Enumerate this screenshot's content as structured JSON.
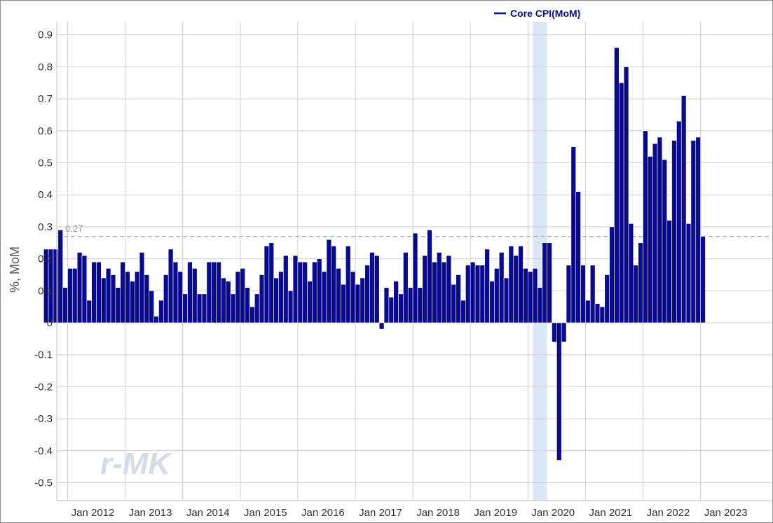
{
  "chart_data": {
    "type": "bar",
    "series": [
      {
        "name": "Core CPI(MoM)",
        "color": "#0a0a8c",
        "start": "2011-08",
        "values": [
          0.23,
          0.23,
          0.23,
          0.29,
          0.11,
          0.17,
          0.17,
          0.22,
          0.21,
          0.07,
          0.19,
          0.19,
          0.14,
          0.17,
          0.15,
          0.11,
          0.19,
          0.16,
          0.13,
          0.16,
          0.22,
          0.15,
          0.1,
          0.02,
          0.07,
          0.15,
          0.23,
          0.19,
          0.16,
          0.09,
          0.19,
          0.17,
          0.09,
          0.09,
          0.19,
          0.19,
          0.19,
          0.14,
          0.13,
          0.09,
          0.16,
          0.17,
          0.11,
          0.05,
          0.09,
          0.15,
          0.24,
          0.25,
          0.14,
          0.16,
          0.21,
          0.1,
          0.21,
          0.19,
          0.19,
          0.13,
          0.19,
          0.2,
          0.16,
          0.26,
          0.24,
          0.17,
          0.12,
          0.24,
          0.16,
          0.12,
          0.14,
          0.18,
          0.22,
          0.21,
          -0.02,
          0.11,
          0.08,
          0.13,
          0.09,
          0.22,
          0.11,
          0.28,
          0.11,
          0.21,
          0.29,
          0.19,
          0.22,
          0.19,
          0.21,
          0.12,
          0.15,
          0.07,
          0.18,
          0.19,
          0.18,
          0.18,
          0.23,
          0.13,
          0.17,
          0.22,
          0.14,
          0.24,
          0.21,
          0.24,
          0.17,
          0.16,
          0.17,
          0.11,
          0.25,
          0.25,
          -0.06,
          -0.43,
          -0.06,
          0.18,
          0.55,
          0.41,
          0.18,
          0.07,
          0.18,
          0.06,
          0.05,
          0.15,
          0.3,
          0.86,
          0.75,
          0.8,
          0.31,
          0.18,
          0.25,
          0.6,
          0.52,
          0.56,
          0.58,
          0.51,
          0.32,
          0.57,
          0.63,
          0.71,
          0.31,
          0.57,
          0.58,
          0.27
        ]
      }
    ],
    "x_ticks": [
      "Jan 2012",
      "Jan 2013",
      "Jan 2014",
      "Jan 2015",
      "Jan 2016",
      "Jan 2017",
      "Jan 2018",
      "Jan 2019",
      "Jan 2020",
      "Jan 2021",
      "Jan 2022",
      "Jan 2023"
    ],
    "y_ticks": [
      "0.9",
      "0.8",
      "0.7",
      "0.6",
      "0.5",
      "0.4",
      "0.3",
      "0.2",
      "0.1",
      "0",
      "-0.1",
      "-0.2",
      "-0.3",
      "-0.4",
      "-0.5"
    ],
    "ylabel": "%, MoM",
    "ylim": [
      -0.55,
      0.95
    ],
    "reference_line": {
      "value": 0.27,
      "label": "0.27",
      "color": "#aaaaaa"
    },
    "shaded_period": {
      "start": "2020-02",
      "end": "2020-04",
      "color": "#dbe7f7"
    },
    "grid": true,
    "legend_position": "top-center",
    "watermark": "r-MK"
  }
}
